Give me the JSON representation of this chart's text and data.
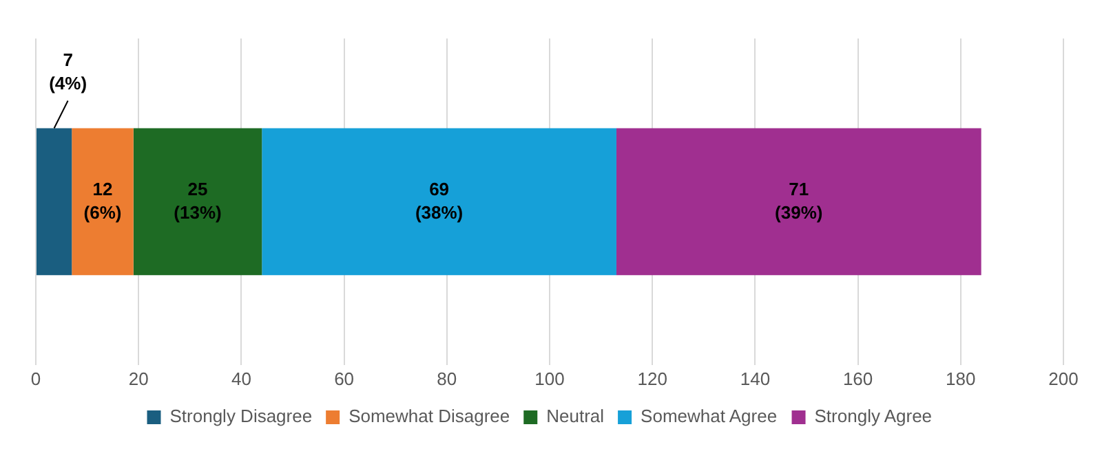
{
  "chart_data": {
    "type": "bar",
    "orientation": "horizontal",
    "stacked": true,
    "categories": [
      null
    ],
    "series": [
      {
        "name": "Strongly Disagree",
        "color": "#1a5e80",
        "values": [
          7
        ],
        "value_labels": [
          "7\n(4%)"
        ]
      },
      {
        "name": "Somewhat Disagree",
        "color": "#ed7d31",
        "values": [
          12
        ],
        "value_labels": [
          "12\n(6%)"
        ]
      },
      {
        "name": "Neutral",
        "color": "#1e6b24",
        "values": [
          25
        ],
        "value_labels": [
          "25\n(13%)"
        ]
      },
      {
        "name": "Somewhat Agree",
        "color": "#16a0d8",
        "values": [
          69
        ],
        "value_labels": [
          "69\n(38%)"
        ]
      },
      {
        "name": "Strongly Agree",
        "color": "#a02f90",
        "values": [
          71
        ],
        "value_labels": [
          "71\n(39%)"
        ]
      }
    ],
    "xlim": [
      0,
      200
    ],
    "xticks": [
      0,
      20,
      40,
      60,
      80,
      100,
      120,
      140,
      160,
      180,
      200
    ],
    "grid": "x",
    "legend": "bottom"
  }
}
